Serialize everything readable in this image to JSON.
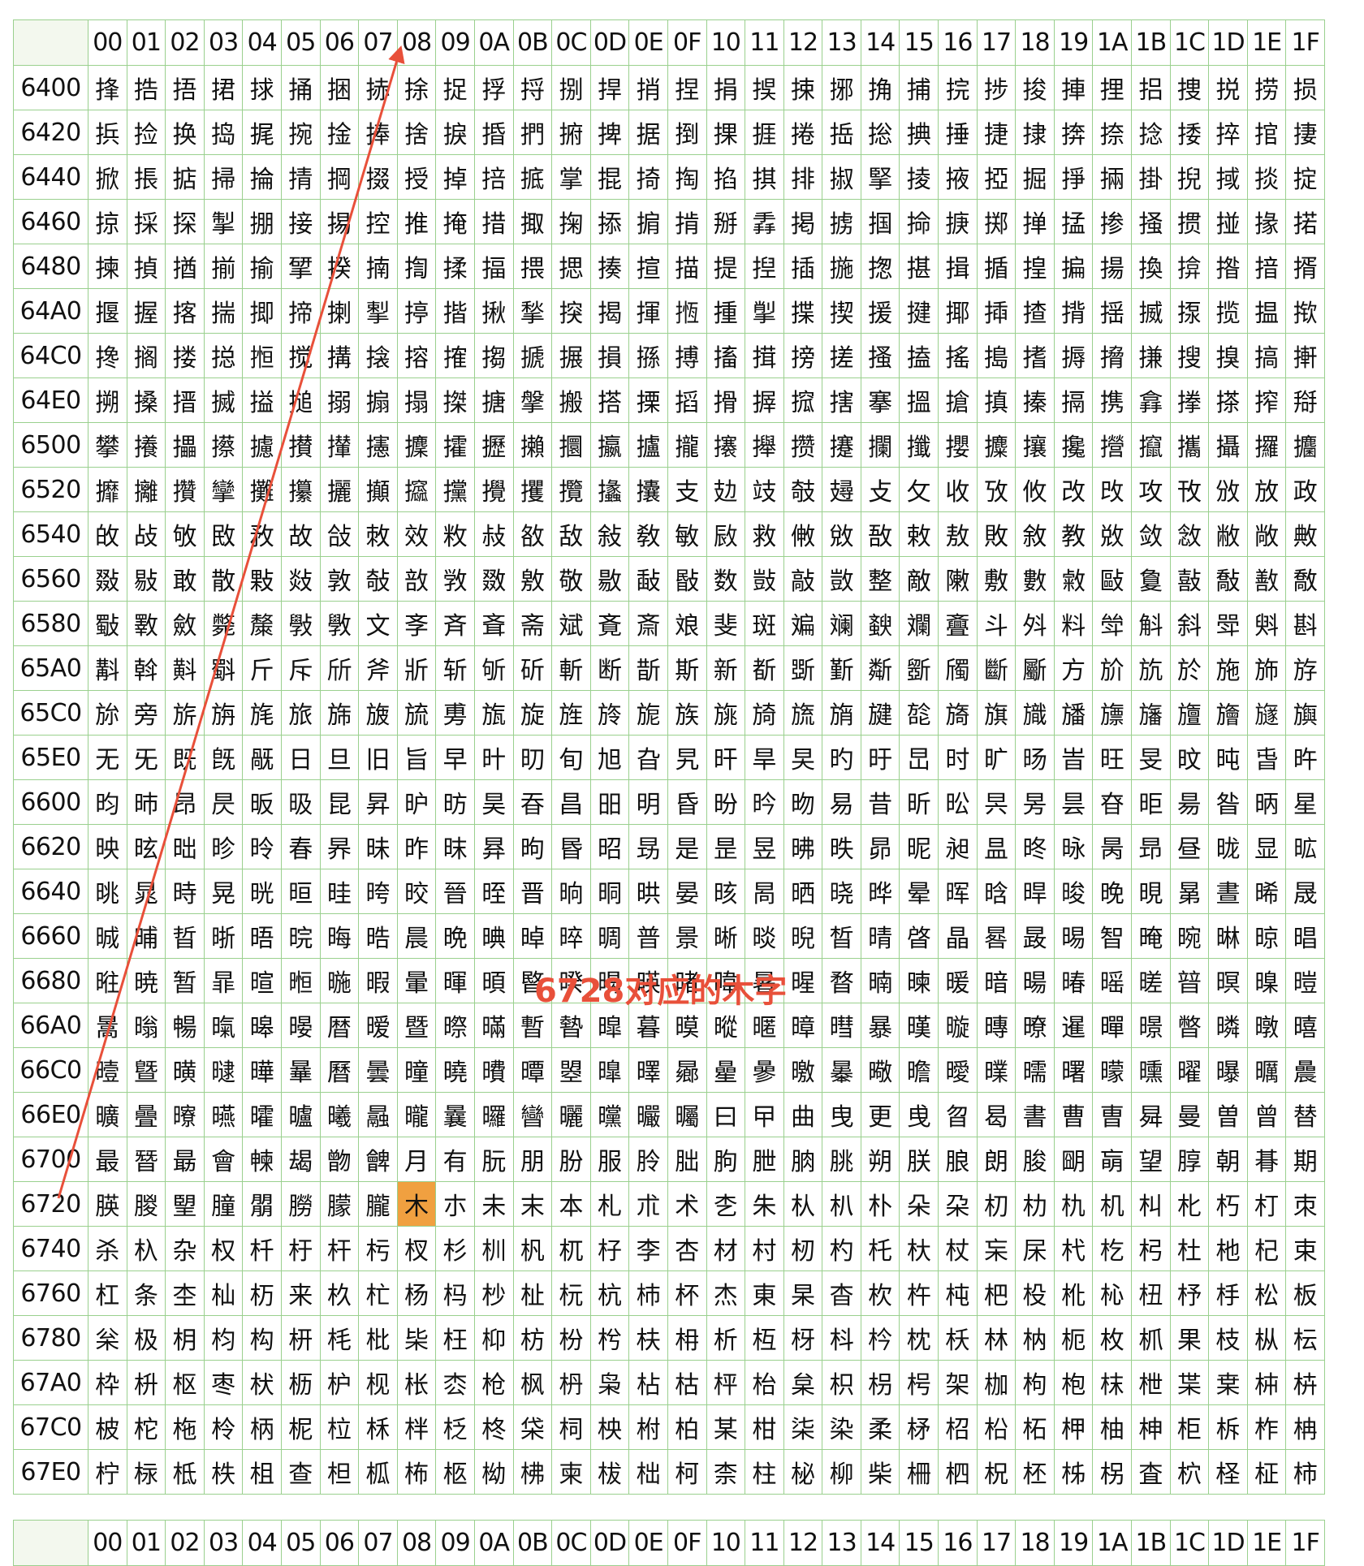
{
  "columns": [
    "00",
    "01",
    "02",
    "03",
    "04",
    "05",
    "06",
    "07",
    "08",
    "09",
    "0A",
    "0B",
    "0C",
    "0D",
    "0E",
    "0F",
    "10",
    "11",
    "12",
    "13",
    "14",
    "15",
    "16",
    "17",
    "18",
    "19",
    "1A",
    "1B",
    "1C",
    "1D",
    "1E",
    "1F"
  ],
  "rows": [
    {
      "code": "6400",
      "chars": "捀捁捂捃捄捅捆捇捈捉捊捋捌捍捎捏捐捑捒捓捔捕捖捗捘捙捚捛捜捝捞损"
    },
    {
      "code": "6420",
      "chars": "捠捡换捣捤捥捦捧捨捩捪捫捬捭据捯捰捱捲捳捴捵捶捷捸捹捺捻捼捽捾捿"
    },
    {
      "code": "6440",
      "chars": "掀掁掂掃掄掅掆掇授掉掊掋掌掍掎掏掐掑排掓掔掕掖掗掘掙掚掛掜掝掞掟"
    },
    {
      "code": "6460",
      "chars": "掠採探掣掤接掦控推掩措掫掬掭掮掯掰掱掲掳掴掵掶掷掸掹掺掻掼掽掾掿"
    },
    {
      "code": "6480",
      "chars": "揀揁揂揃揄揅揆揇揈揉揊揋揌揍揎描提揑插揓揔揕揖揗揘揙揚換揜揝揞揟"
    },
    {
      "code": "64A0",
      "chars": "揠握揢揣揤揥揦揧揨揩揪揫揬揭揮揯揰揱揲揳援揵揶揷揸揹揺揻揼揽揾揿"
    },
    {
      "code": "64C0",
      "chars": "搀搁搂搃搄搅搆搇搈搉搊搋搌損搎搏搐搑搒搓搔搕搖搗搘搙搚搛搜搝搞搟"
    },
    {
      "code": "64E0",
      "chars": "搠搡搢搣搤搥搦搧搨搩搪搫搬搭搮搯搰搱搲搳搴搵搶搷搸搹携搻搼搽搾搿"
    },
    {
      "code": "6500",
      "chars": "攀攁攂攃攄攅攆攇攈攉攊攋攌攍攎攏攐攑攒攓攔攕攖攗攘攙攚攛攜攝攞攟"
    },
    {
      "code": "6520",
      "chars": "攠攡攢攣攤攥攦攧攨攩攪攫攬攭攮支攰攱攲攳攴攵收攷攸改攺攻攼攽放政"
    },
    {
      "code": "6540",
      "chars": "敀敁敂敃敄故敆敇效敉敊敋敌敍敎敏敐救敒敓敔敕敖敗敘教敚敛敜敝敞敟"
    },
    {
      "code": "6560",
      "chars": "敠敡敢散敤敥敦敧敨敩敪敫敬敭敮敯数敱敲敳整敵敶敷數敹敺敻敼敽敾敿"
    },
    {
      "code": "6580",
      "chars": "斀斁斂斃斄斅斆文斈斉斊斋斌斍斎斏斐斑斒斓斔斕斖斗斘料斚斛斜斝斞斟"
    },
    {
      "code": "65A0",
      "chars": "斠斡斢斣斤斥斦斧斨斩斪斫斬断斮斯新斱斲斳斴斵斶斷斸方斺斻於施斾斿"
    },
    {
      "code": "65C0",
      "chars": "旀旁旂旃旄旅旆旇旈旉旊旋旌旍旎族旐旑旒旓旔旕旖旗旘旙旚旛旜旝旞旟"
    },
    {
      "code": "65E0",
      "chars": "无旡既旣旤日旦旧旨早旪旫旬旭旮旯旰旱旲旳旴旵时旷旸旹旺旻旼旽旾旿"
    },
    {
      "code": "6600",
      "chars": "昀昁昂昃昄昅昆昇昈昉昊昋昌昍明昏昐昑昒易昔昕昖昗昘昙昚昛昜昝昞星"
    },
    {
      "code": "6620",
      "chars": "映昡昢昣昤春昦昧昨昩昪昫昬昭昮是昰昱昲昳昴昵昶昷昸昹昺昻昼昽显昿"
    },
    {
      "code": "6640",
      "chars": "晀晁時晃晄晅晆晇晈晉晊晋晌晍晎晏晐晑晒晓晔晕晖晗晘晙晚晛晜晝晞晟"
    },
    {
      "code": "6660",
      "chars": "晠晡晢晣晤晥晦晧晨晩晪晫晬晭普景晰晱晲晳晴晵晶晷晸晹智晻晼晽晾晿"
    },
    {
      "code": "6680",
      "chars": "暀暁暂暃暄暅暆暇暈暉暊暋暌暍暎暏暐暑暒暓暔暕暖暗暘暙暚暛暜暝暞暟"
    },
    {
      "code": "66A0",
      "chars": "暠暡暢暣暤暥暦暧暨暩暪暫暬暭暮暯暰暱暲暳暴暵暶暷暸暹暺暻暼暽暾暿"
    },
    {
      "code": "66C0",
      "chars": "曀曁曂曃曄曅曆曇曈曉曊曋曌曍曎曏曐曑曒曓曔曕曖曗曘曙曚曛曜曝曞曟"
    },
    {
      "code": "66E0",
      "chars": "曠曡曢曣曤曥曦曧曨曩曪曫曬曭曮曯曰曱曲曳更曵曶曷書曹曺曻曼曽曾替"
    },
    {
      "code": "6700",
      "chars": "最朁朂會朄朅朆朇月有朊朋朌服朎朏朐朑朒朓朔朕朖朗朘朙朚望朜朝朞期"
    },
    {
      "code": "6720",
      "chars": "朠朡朢朣朤朥朦朧木朩未末本札朮术朰朱朲朳朴朵朶朷朸朹机朻朼朽朾朿"
    },
    {
      "code": "6740",
      "chars": "杀杁杂权杄杅杆杇杈杉杊杋杌杍李杏材村杒杓杔杕杖杗杘杙杚杛杜杝杞束"
    },
    {
      "code": "6760",
      "chars": "杠条杢杣杤来杦杧杨杩杪杫杬杭杮杯杰東杲杳杴杵杶杷杸杹杺杻杼杽松板"
    },
    {
      "code": "6780",
      "chars": "枀极枂枃构枅枆枇枈枉枊枋枌枍枎枏析枑枒枓枔枕枖林枘枙枚枛果枝枞枟"
    },
    {
      "code": "67A0",
      "chars": "枠枡枢枣枤枥枦枧枨枩枪枫枬枭枮枯枰枱枲枳枴枵架枷枸枹枺枻枼枽枾枿"
    },
    {
      "code": "67C0",
      "chars": "柀柁柂柃柄柅柆柇柈柉柊柋柌柍柎柏某柑柒染柔柕柖柗柘柙柚柛柜柝柞柟"
    },
    {
      "code": "67E0",
      "chars": "柠柡柢柣柤查柦柧柨柩柪柫柬柭柮柯柰柱柲柳柴柵柶柷柸柹柺査柼柽柾柿"
    }
  ],
  "highlight": {
    "row": "6720",
    "col": "08"
  },
  "annotation": {
    "text": "6728对应的木字",
    "color": "#e8503a"
  }
}
